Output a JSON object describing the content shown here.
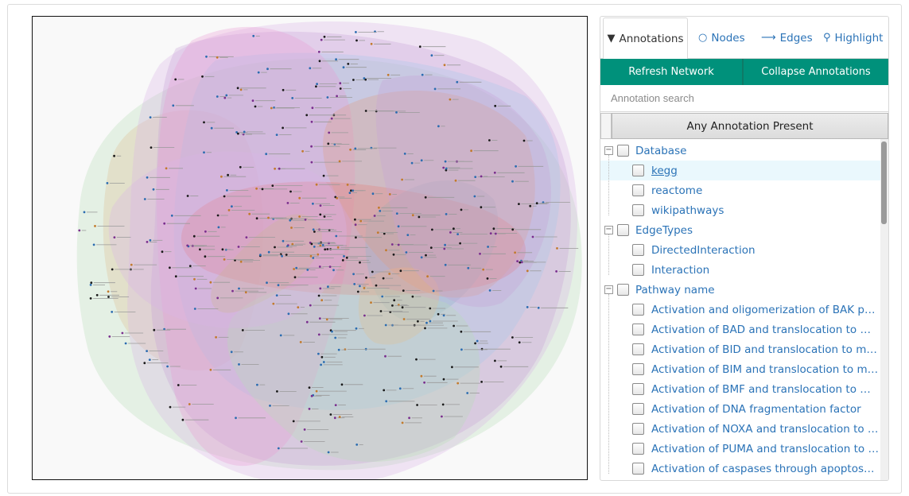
{
  "tabs": [
    {
      "label": "Annotations",
      "icon": "filter-icon"
    },
    {
      "label": "Nodes",
      "icon": "circle-icon"
    },
    {
      "label": "Edges",
      "icon": "arrow-right-icon"
    },
    {
      "label": "Highlight",
      "icon": "lightbulb-icon"
    }
  ],
  "buttons": {
    "refresh_label": "Refresh Network",
    "collapse_label": "Collapse Annotations"
  },
  "search": {
    "placeholder": "Annotation search"
  },
  "any_annotation_label": "Any Annotation Present",
  "tree": {
    "groups": [
      {
        "label": "Database",
        "items": [
          "kegg",
          "reactome",
          "wikipathways"
        ]
      },
      {
        "label": "EdgeTypes",
        "items": [
          "DirectedInteraction",
          "Interaction"
        ]
      },
      {
        "label": "Pathway name",
        "items": [
          "Activation and oligomerization of BAK protein",
          "Activation of BAD and translocation to mitochondria",
          "Activation of BID and translocation to mitochondria",
          "Activation of BIM and translocation to mitochondria",
          "Activation of BMF and translocation to mitochondria",
          "Activation of DNA fragmentation factor",
          "Activation of NOXA and translocation to mitochondria",
          "Activation of PUMA and translocation to mitochondria",
          "Activation of caspases through apoptosome-mediated cleavage"
        ]
      }
    ],
    "selected_item": "kegg"
  },
  "colors": {
    "accent": "#00917b",
    "link": "#2b73b7",
    "selected_row": "#eaf8fd",
    "hulls": [
      "#f4b183",
      "#b6dcb6",
      "#d9b3e6",
      "#c8a2d8",
      "#a9c6e8",
      "#e89bd2",
      "#e57373",
      "#c7b36f",
      "#8fb3c9",
      "#e0a084"
    ]
  }
}
